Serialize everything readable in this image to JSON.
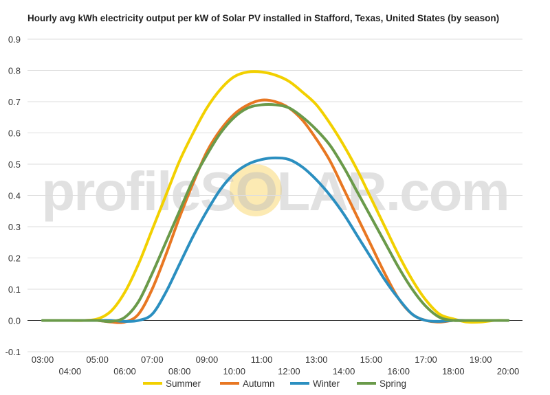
{
  "chart_data": {
    "type": "line",
    "title": "Hourly avg kWh electricity output per kW of Solar PV installed in Stafford, Texas, United States (by season)",
    "watermark": "profileSOLAR.com",
    "ylim": [
      -0.1,
      0.9
    ],
    "y_ticks": [
      "0.9",
      "0.8",
      "0.7",
      "0.6",
      "0.5",
      "0.4",
      "0.3",
      "0.2",
      "0.1",
      "0.0",
      "-0.1"
    ],
    "x_ticks_top": [
      "03:00",
      "05:00",
      "07:00",
      "09:00",
      "11:00",
      "13:00",
      "15:00",
      "17:00",
      "19:00"
    ],
    "x_ticks_bottom": [
      "04:00",
      "06:00",
      "08:00",
      "10:00",
      "12:00",
      "14:00",
      "16:00",
      "18:00",
      "20:00"
    ],
    "grid": true,
    "legend_position": "bottom",
    "x": [
      "03:00",
      "03:30",
      "04:00",
      "04:30",
      "05:00",
      "05:30",
      "06:00",
      "06:30",
      "07:00",
      "07:30",
      "08:00",
      "08:30",
      "09:00",
      "09:30",
      "10:00",
      "10:30",
      "11:00",
      "11:30",
      "12:00",
      "12:30",
      "13:00",
      "13:30",
      "14:00",
      "14:30",
      "15:00",
      "15:30",
      "16:00",
      "16:30",
      "17:00",
      "17:30",
      "18:00",
      "18:30",
      "19:00",
      "19:30",
      "20:00"
    ],
    "series": [
      {
        "name": "Summer",
        "color": "#f2d000",
        "values": [
          0.0,
          0.0,
          0.0,
          0.0,
          0.005,
          0.03,
          0.09,
          0.18,
          0.29,
          0.4,
          0.51,
          0.6,
          0.68,
          0.74,
          0.78,
          0.795,
          0.795,
          0.785,
          0.765,
          0.73,
          0.69,
          0.63,
          0.56,
          0.48,
          0.39,
          0.3,
          0.21,
          0.13,
          0.065,
          0.02,
          0.005,
          -0.005,
          -0.005,
          0.0,
          0.0
        ]
      },
      {
        "name": "Autumn",
        "color": "#e87722",
        "values": [
          0.0,
          0.0,
          0.0,
          0.0,
          0.0,
          -0.005,
          -0.005,
          0.02,
          0.1,
          0.21,
          0.33,
          0.44,
          0.54,
          0.61,
          0.66,
          0.69,
          0.705,
          0.7,
          0.68,
          0.64,
          0.58,
          0.51,
          0.42,
          0.33,
          0.24,
          0.15,
          0.07,
          0.02,
          0.0,
          -0.005,
          0.0,
          0.0,
          0.0,
          0.0,
          0.0
        ]
      },
      {
        "name": "Winter",
        "color": "#2b8fc0",
        "values": [
          0.0,
          0.0,
          0.0,
          0.0,
          0.0,
          0.0,
          -0.003,
          0.0,
          0.02,
          0.09,
          0.18,
          0.27,
          0.35,
          0.42,
          0.47,
          0.5,
          0.515,
          0.52,
          0.515,
          0.49,
          0.45,
          0.4,
          0.34,
          0.27,
          0.2,
          0.13,
          0.07,
          0.02,
          0.0,
          -0.003,
          0.0,
          0.0,
          0.0,
          0.0,
          0.0
        ]
      },
      {
        "name": "Spring",
        "color": "#6a9a4a",
        "values": [
          0.0,
          0.0,
          0.0,
          0.0,
          0.0,
          -0.003,
          0.01,
          0.06,
          0.15,
          0.25,
          0.35,
          0.45,
          0.53,
          0.6,
          0.65,
          0.68,
          0.69,
          0.69,
          0.68,
          0.65,
          0.61,
          0.56,
          0.49,
          0.41,
          0.33,
          0.25,
          0.17,
          0.1,
          0.045,
          0.01,
          0.0,
          0.0,
          0.0,
          0.0,
          0.0
        ]
      }
    ]
  }
}
